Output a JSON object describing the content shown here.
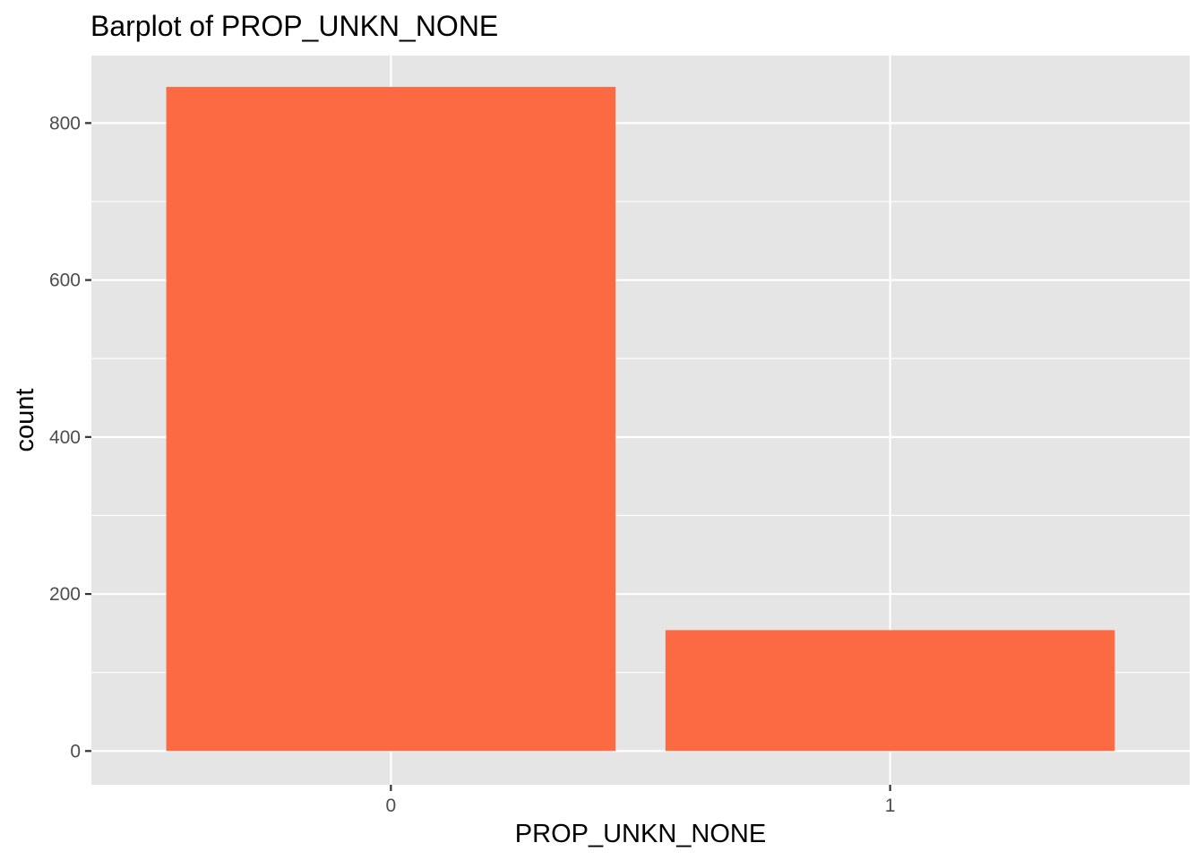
{
  "chart_data": {
    "type": "bar",
    "title": "Barplot of PROP_UNKN_NONE",
    "xlabel": "PROP_UNKN_NONE",
    "ylabel": "count",
    "categories": [
      "0",
      "1"
    ],
    "values": [
      846,
      154
    ],
    "ylim": [
      -43,
      886
    ],
    "yticks": [
      0,
      200,
      400,
      600,
      800
    ],
    "grid": true,
    "legend": "none",
    "colors": {
      "bar": "#FC6A43",
      "panel": "#E5E5E5",
      "gridline": "#FFFFFF",
      "tick_text": "#4D4D4D",
      "tick_mark": "#333333"
    }
  }
}
